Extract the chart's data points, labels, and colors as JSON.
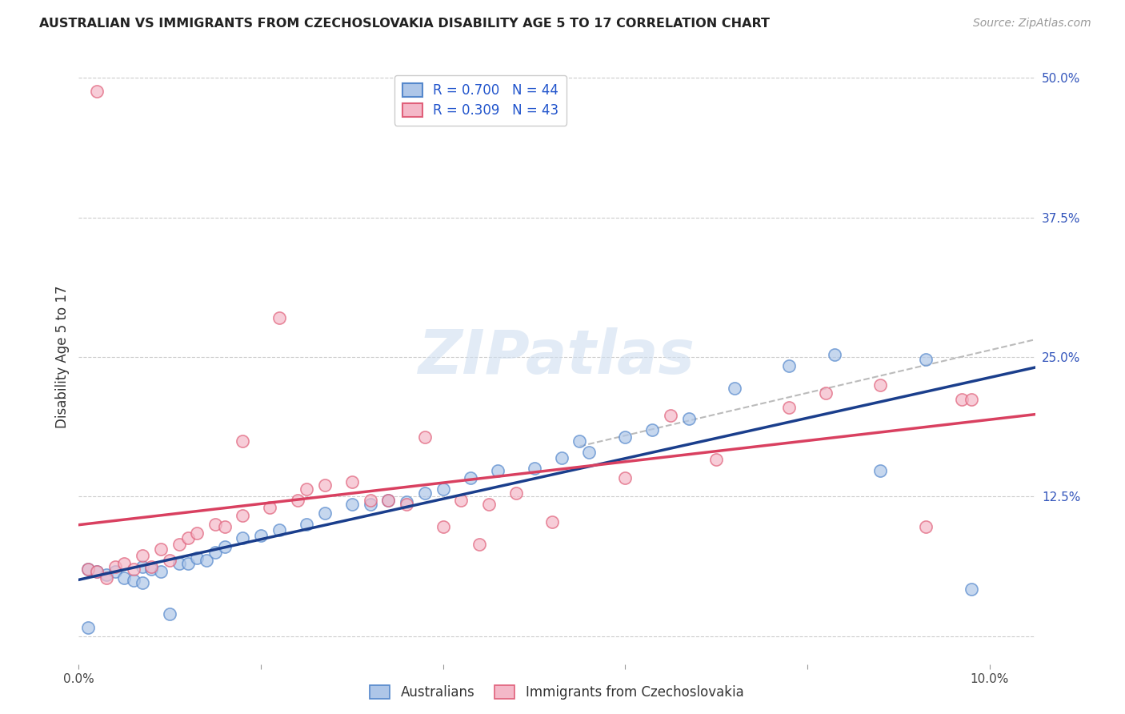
{
  "title": "AUSTRALIAN VS IMMIGRANTS FROM CZECHOSLOVAKIA DISABILITY AGE 5 TO 17 CORRELATION CHART",
  "source": "Source: ZipAtlas.com",
  "ylabel": "Disability Age 5 to 17",
  "ytick_values": [
    0.0,
    0.125,
    0.25,
    0.375,
    0.5
  ],
  "ytick_labels": [
    "",
    "12.5%",
    "25.0%",
    "37.5%",
    "50.0%"
  ],
  "xtick_values": [
    0.0,
    0.02,
    0.04,
    0.06,
    0.08,
    0.1
  ],
  "xtick_labels": [
    "0.0%",
    "",
    "",
    "",
    "",
    "10.0%"
  ],
  "xlim": [
    0.0,
    0.105
  ],
  "ylim": [
    -0.025,
    0.525
  ],
  "color_blue_fill": "#aec6e8",
  "color_pink_fill": "#f4b8c8",
  "color_blue_edge": "#5588cc",
  "color_pink_edge": "#e0607a",
  "color_blue_line": "#1a3e8c",
  "color_pink_line": "#d94060",
  "color_dashed": "#bbbbbb",
  "color_grid": "#cccccc",
  "watermark_color": "#d0dff0",
  "australians_x": [
    0.001,
    0.002,
    0.003,
    0.004,
    0.005,
    0.006,
    0.007,
    0.007,
    0.008,
    0.009,
    0.01,
    0.011,
    0.012,
    0.013,
    0.014,
    0.015,
    0.016,
    0.018,
    0.02,
    0.022,
    0.025,
    0.027,
    0.03,
    0.032,
    0.034,
    0.036,
    0.038,
    0.04,
    0.043,
    0.046,
    0.05,
    0.053,
    0.056,
    0.06,
    0.063,
    0.067,
    0.072,
    0.078,
    0.083,
    0.088,
    0.093,
    0.001,
    0.055,
    0.098
  ],
  "australians_y": [
    0.06,
    0.058,
    0.055,
    0.058,
    0.052,
    0.05,
    0.062,
    0.048,
    0.06,
    0.058,
    0.02,
    0.065,
    0.065,
    0.07,
    0.068,
    0.075,
    0.08,
    0.088,
    0.09,
    0.095,
    0.1,
    0.11,
    0.118,
    0.118,
    0.122,
    0.12,
    0.128,
    0.132,
    0.142,
    0.148,
    0.15,
    0.16,
    0.165,
    0.178,
    0.185,
    0.195,
    0.222,
    0.242,
    0.252,
    0.148,
    0.248,
    0.008,
    0.175,
    0.042
  ],
  "czechoslovakia_x": [
    0.001,
    0.002,
    0.003,
    0.004,
    0.005,
    0.006,
    0.007,
    0.008,
    0.009,
    0.01,
    0.011,
    0.012,
    0.013,
    0.015,
    0.016,
    0.018,
    0.021,
    0.022,
    0.025,
    0.027,
    0.03,
    0.032,
    0.034,
    0.036,
    0.038,
    0.04,
    0.042,
    0.045,
    0.048,
    0.052,
    0.06,
    0.065,
    0.07,
    0.078,
    0.082,
    0.088,
    0.093,
    0.097,
    0.098,
    0.018,
    0.024,
    0.002,
    0.044
  ],
  "czechoslovakia_y": [
    0.06,
    0.058,
    0.052,
    0.062,
    0.065,
    0.06,
    0.072,
    0.062,
    0.078,
    0.068,
    0.082,
    0.088,
    0.092,
    0.1,
    0.098,
    0.108,
    0.115,
    0.285,
    0.132,
    0.135,
    0.138,
    0.122,
    0.122,
    0.118,
    0.178,
    0.098,
    0.122,
    0.118,
    0.128,
    0.102,
    0.142,
    0.198,
    0.158,
    0.205,
    0.218,
    0.225,
    0.098,
    0.212,
    0.212,
    0.175,
    0.122,
    0.488,
    0.082
  ]
}
